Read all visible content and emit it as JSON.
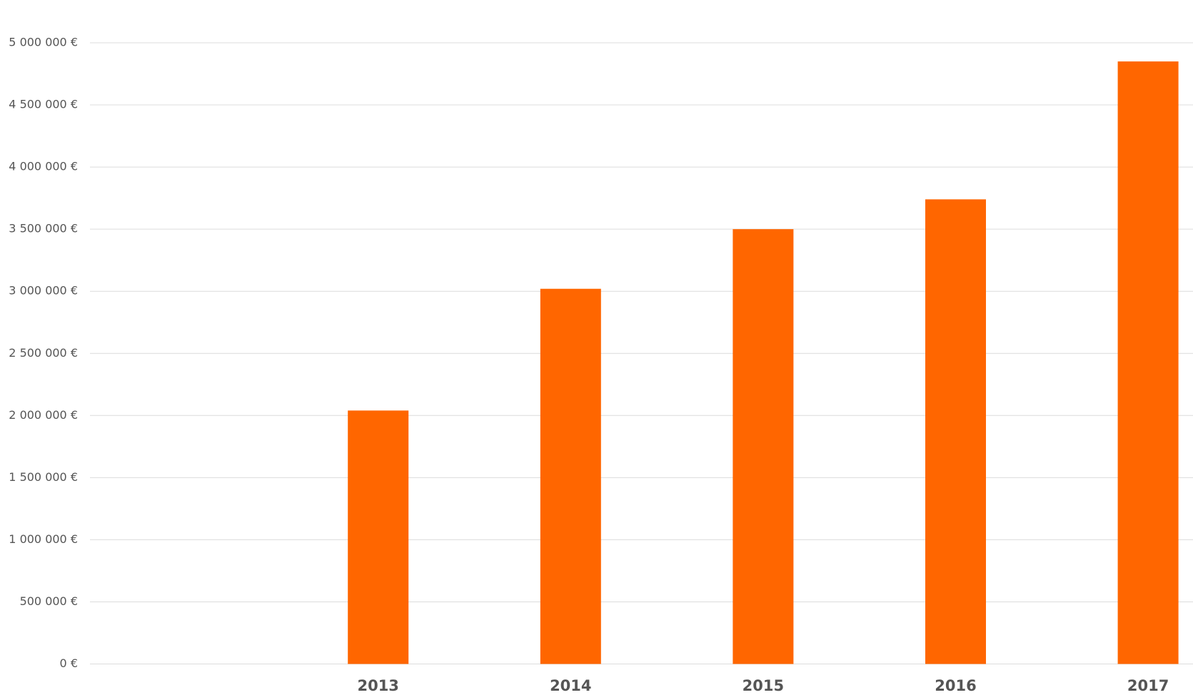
{
  "chart_data": {
    "type": "bar",
    "categories": [
      "2013",
      "2014",
      "2015",
      "2016",
      "2017"
    ],
    "values": [
      2040000,
      3020000,
      3500000,
      3740000,
      4850000
    ],
    "color": "#ff6600",
    "ylim": [
      0,
      5000000
    ],
    "yticks": [
      {
        "value": 0,
        "label": "0 €"
      },
      {
        "value": 500000,
        "label": "500 000 €"
      },
      {
        "value": 1000000,
        "label": "1 000 000 €"
      },
      {
        "value": 1500000,
        "label": "1 500 000 €"
      },
      {
        "value": 2000000,
        "label": "2 000 000 €"
      },
      {
        "value": 2500000,
        "label": "2 500 000 €"
      },
      {
        "value": 3000000,
        "label": "3 000 000 €"
      },
      {
        "value": 3500000,
        "label": "3 500 000 €"
      },
      {
        "value": 4000000,
        "label": "4 000 000 €"
      },
      {
        "value": 4500000,
        "label": "4 500 000 €"
      },
      {
        "value": 5000000,
        "label": "5 000 000 €"
      }
    ],
    "grid": true
  }
}
